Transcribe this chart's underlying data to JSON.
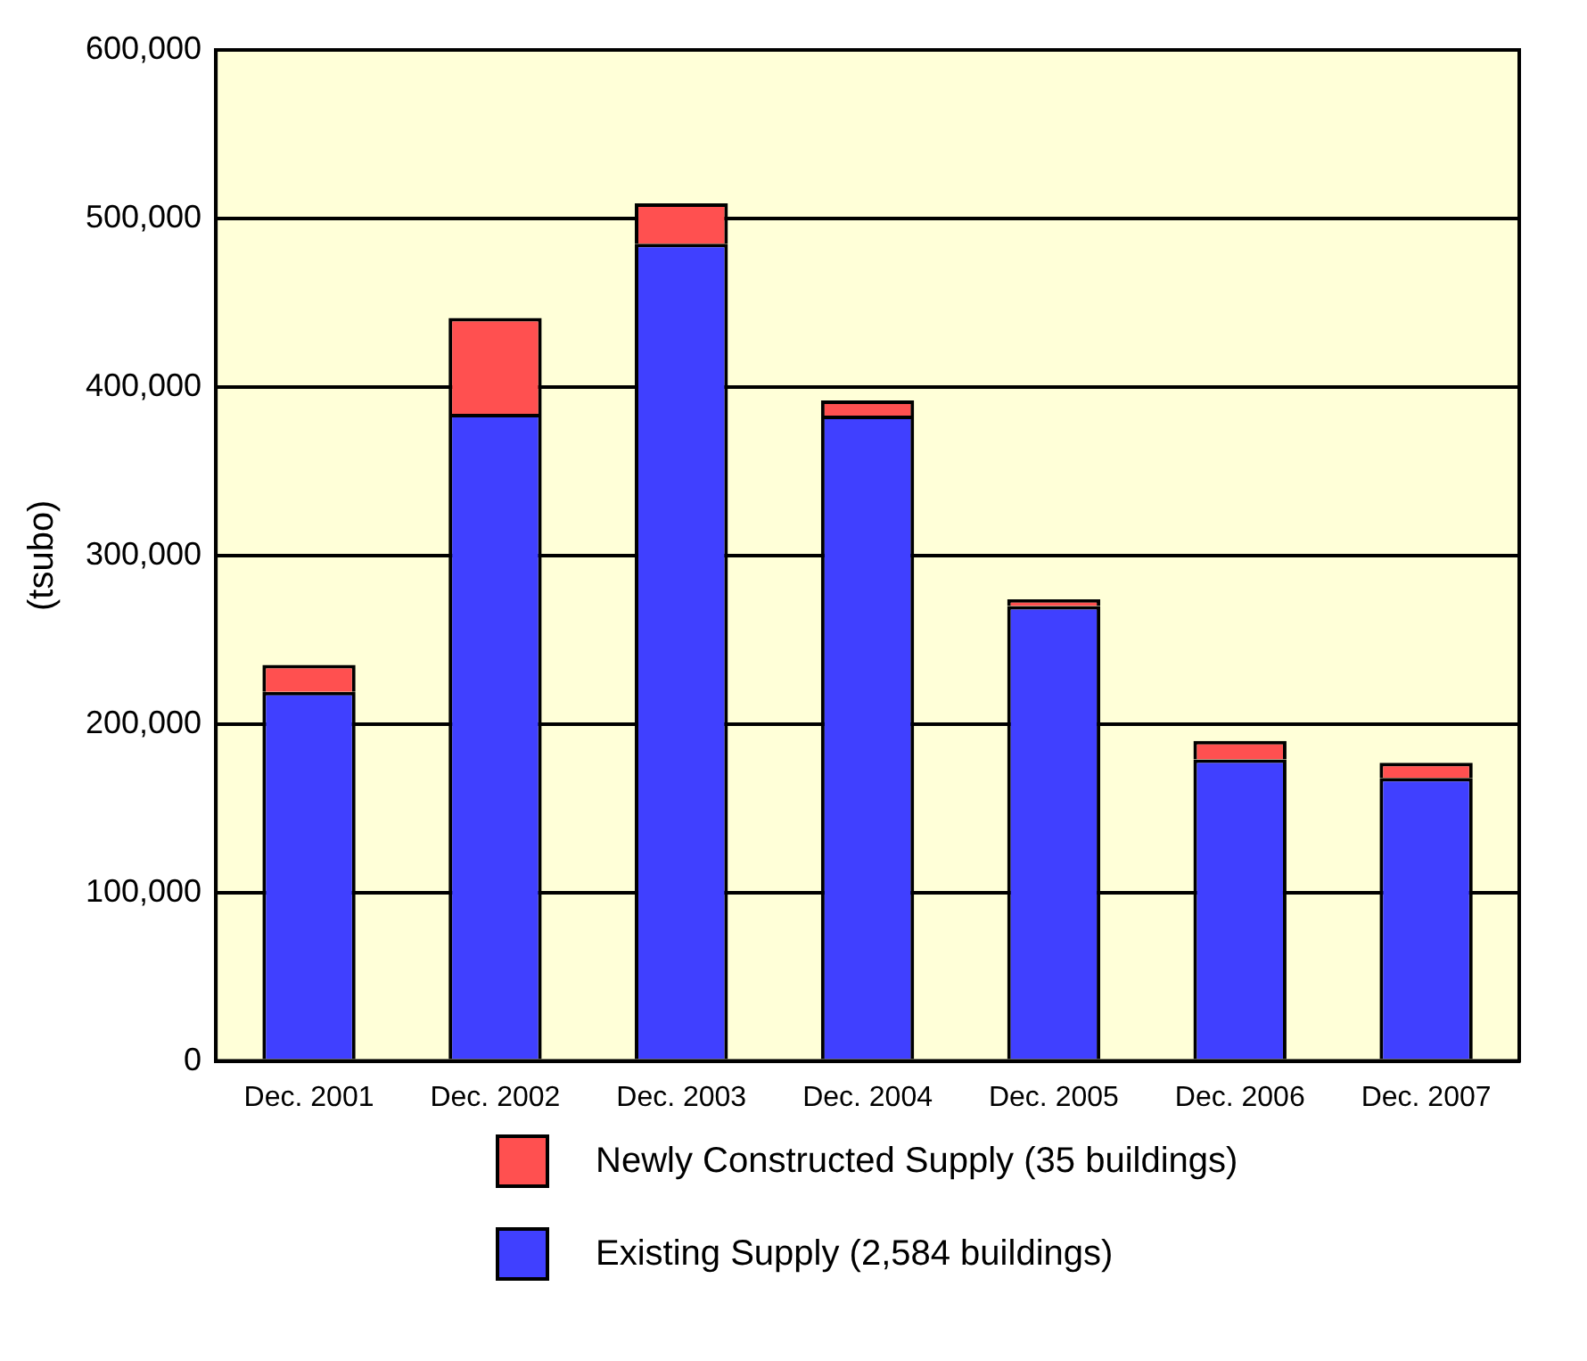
{
  "chart_data": {
    "type": "bar",
    "stacked": true,
    "ylabel": "(tsubo)",
    "categories": [
      "Dec. 2001",
      "Dec. 2002",
      "Dec. 2003",
      "Dec. 2004",
      "Dec. 2005",
      "Dec. 2006",
      "Dec. 2007"
    ],
    "series": [
      {
        "name": "Existing Supply (2,584 buildings)",
        "color": "#4040ff",
        "values": [
          219000,
          384000,
          485000,
          383000,
          270000,
          179000,
          168000
        ]
      },
      {
        "name": "Newly Constructed Supply (35 buildings)",
        "color": "#ff5050",
        "values": [
          16000,
          57000,
          24000,
          9000,
          4000,
          11000,
          9000
        ]
      }
    ],
    "ylim": [
      0,
      600000
    ],
    "yticks": [
      0,
      {
        "value": 100000,
        "label": "100,000"
      },
      {
        "value": 200000,
        "label": "200,000"
      },
      {
        "value": 300000,
        "label": "300,000"
      },
      {
        "value": 400000,
        "label": "400,000"
      },
      {
        "value": 500000,
        "label": "500,000"
      },
      {
        "value": 600000,
        "label": "600,000"
      }
    ],
    "grid": "y",
    "legend": "bottom"
  }
}
